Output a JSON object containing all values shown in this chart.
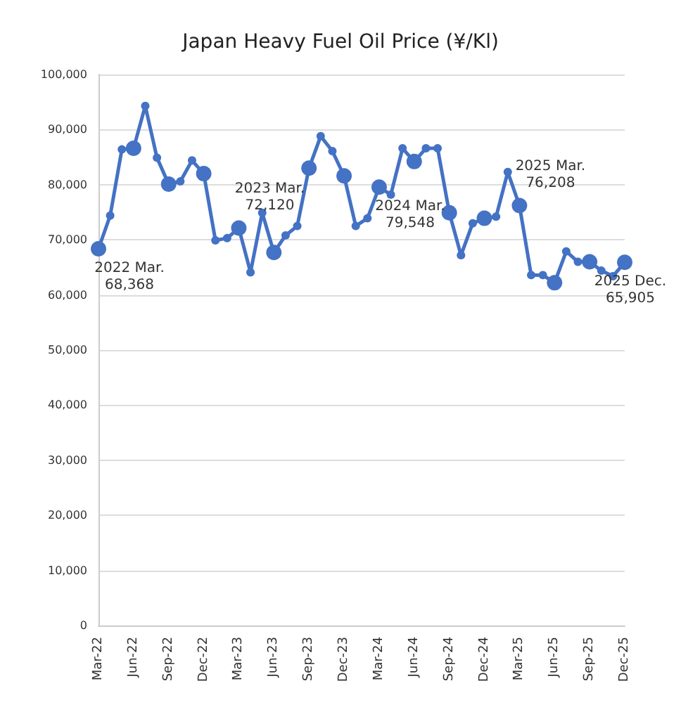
{
  "chart_data": {
    "type": "line",
    "title": "Japan Heavy Fuel Oil Price (¥/Kl)",
    "categories": [
      "Mar-22",
      null,
      null,
      "Jun-22",
      null,
      null,
      "Sep-22",
      null,
      null,
      "Dec-22",
      null,
      null,
      "Mar-23",
      null,
      null,
      "Jun-23",
      null,
      null,
      "Sep-23",
      null,
      null,
      "Dec-23",
      null,
      null,
      "Mar-24",
      null,
      null,
      "Jun-24",
      null,
      null,
      "Sep-24",
      null,
      null,
      "Dec-24",
      null,
      null,
      "Mar-25",
      null,
      null,
      "Jun-25",
      null,
      null,
      "Sep-25",
      null,
      null,
      "Dec-25"
    ],
    "series": [
      {
        "color": "#4472c4",
        "values": [
          68368,
          74400,
          86400,
          86600,
          94300,
          84900,
          80100,
          80600,
          84400,
          82000,
          69900,
          70300,
          72120,
          64100,
          74900,
          67700,
          70800,
          72500,
          83000,
          88800,
          86100,
          81600,
          72500,
          73900,
          79548,
          78200,
          86600,
          84200,
          86600,
          86600,
          74900,
          67200,
          73000,
          73900,
          74200,
          82300,
          76208,
          63600,
          63600,
          62200,
          67900,
          66000,
          66000,
          64400,
          63400,
          65905
        ]
      }
    ],
    "annotations": [
      {
        "text": "2022 Mar.\n68,368",
        "x": "Mar-22",
        "y": 68368
      },
      {
        "text": "2023 Mar.\n72,120",
        "x": "Mar-23",
        "y": 72120
      },
      {
        "text": "2024 Mar.\n79,548",
        "x": "Mar-24",
        "y": 79548
      },
      {
        "text": "2025 Mar.\n76,208",
        "x": "Mar-25",
        "y": 76208
      },
      {
        "text": "2025 Dec.\n65,905",
        "x": "Dec-25",
        "y": 65905
      }
    ],
    "ylim": [
      0,
      100000
    ],
    "yticks": [
      {
        "value": 0,
        "label": "0"
      },
      {
        "value": 10000,
        "label": "10,000"
      },
      {
        "value": 20000,
        "label": "20,000"
      },
      {
        "value": 30000,
        "label": "30,000"
      },
      {
        "value": 40000,
        "label": "40,000"
      },
      {
        "value": 50000,
        "label": "50,000"
      },
      {
        "value": 60000,
        "label": "60,000"
      },
      {
        "value": 70000,
        "label": "70,000"
      },
      {
        "value": 80000,
        "label": "80,000"
      },
      {
        "value": 90000,
        "label": "90,000"
      },
      {
        "value": 100000,
        "label": "100,000"
      }
    ],
    "grid": "y",
    "marker": "circle",
    "line_style": "solid"
  }
}
